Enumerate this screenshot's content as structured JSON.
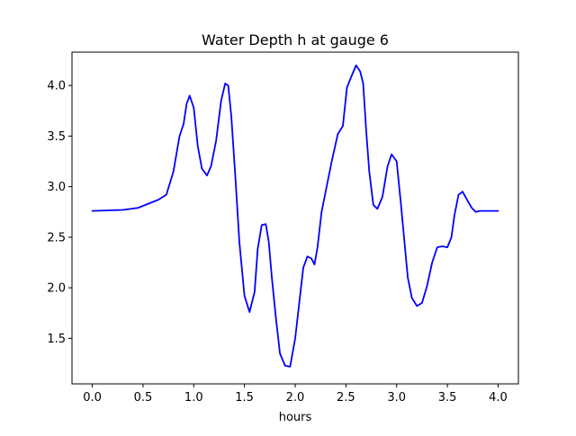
{
  "chart_data": {
    "type": "line",
    "title": "Water Depth h at gauge 6",
    "xlabel": "hours",
    "ylabel": "",
    "xlim": [
      -0.2,
      4.2
    ],
    "ylim": [
      1.05,
      4.33
    ],
    "grid": false,
    "legend": "none",
    "xticks": [
      0.0,
      0.5,
      1.0,
      1.5,
      2.0,
      2.5,
      3.0,
      3.5,
      4.0
    ],
    "xtick_labels": [
      "0.0",
      "0.5",
      "1.0",
      "1.5",
      "2.0",
      "2.5",
      "3.0",
      "3.5",
      "4.0"
    ],
    "yticks": [
      1.5,
      2.0,
      2.5,
      3.0,
      3.5,
      4.0
    ],
    "ytick_labels": [
      "1.5",
      "2.0",
      "2.5",
      "3.0",
      "3.5",
      "4.0"
    ],
    "series": [
      {
        "color": "#0000ff",
        "x": [
          0.0,
          0.3,
          0.45,
          0.55,
          0.65,
          0.73,
          0.8,
          0.86,
          0.9,
          0.93,
          0.96,
          1.0,
          1.04,
          1.08,
          1.13,
          1.17,
          1.22,
          1.27,
          1.31,
          1.34,
          1.37,
          1.41,
          1.45,
          1.5,
          1.55,
          1.6,
          1.63,
          1.67,
          1.71,
          1.74,
          1.77,
          1.81,
          1.85,
          1.9,
          1.95,
          2.0,
          2.04,
          2.08,
          2.12,
          2.16,
          2.19,
          2.22,
          2.26,
          2.3,
          2.36,
          2.42,
          2.47,
          2.51,
          2.55,
          2.6,
          2.64,
          2.67,
          2.7,
          2.73,
          2.77,
          2.81,
          2.86,
          2.91,
          2.95,
          3.0,
          3.04,
          3.08,
          3.11,
          3.15,
          3.2,
          3.25,
          3.3,
          3.35,
          3.4,
          3.45,
          3.5,
          3.54,
          3.57,
          3.61,
          3.65,
          3.7,
          3.74,
          3.78,
          3.82,
          3.86,
          3.91,
          3.96,
          4.0
        ],
        "y": [
          2.76,
          2.77,
          2.79,
          2.83,
          2.87,
          2.92,
          3.15,
          3.5,
          3.62,
          3.82,
          3.9,
          3.78,
          3.4,
          3.18,
          3.11,
          3.2,
          3.45,
          3.85,
          4.02,
          4.0,
          3.7,
          3.1,
          2.45,
          1.92,
          1.76,
          1.96,
          2.38,
          2.62,
          2.63,
          2.45,
          2.1,
          1.7,
          1.35,
          1.23,
          1.22,
          1.5,
          1.85,
          2.2,
          2.31,
          2.29,
          2.23,
          2.4,
          2.75,
          2.95,
          3.25,
          3.52,
          3.6,
          3.98,
          4.08,
          4.2,
          4.14,
          4.02,
          3.55,
          3.15,
          2.82,
          2.78,
          2.9,
          3.2,
          3.32,
          3.25,
          2.85,
          2.42,
          2.1,
          1.9,
          1.82,
          1.85,
          2.02,
          2.25,
          2.4,
          2.41,
          2.4,
          2.5,
          2.72,
          2.92,
          2.95,
          2.86,
          2.79,
          2.75,
          2.76,
          2.76,
          2.76,
          2.76,
          2.76
        ]
      }
    ]
  }
}
